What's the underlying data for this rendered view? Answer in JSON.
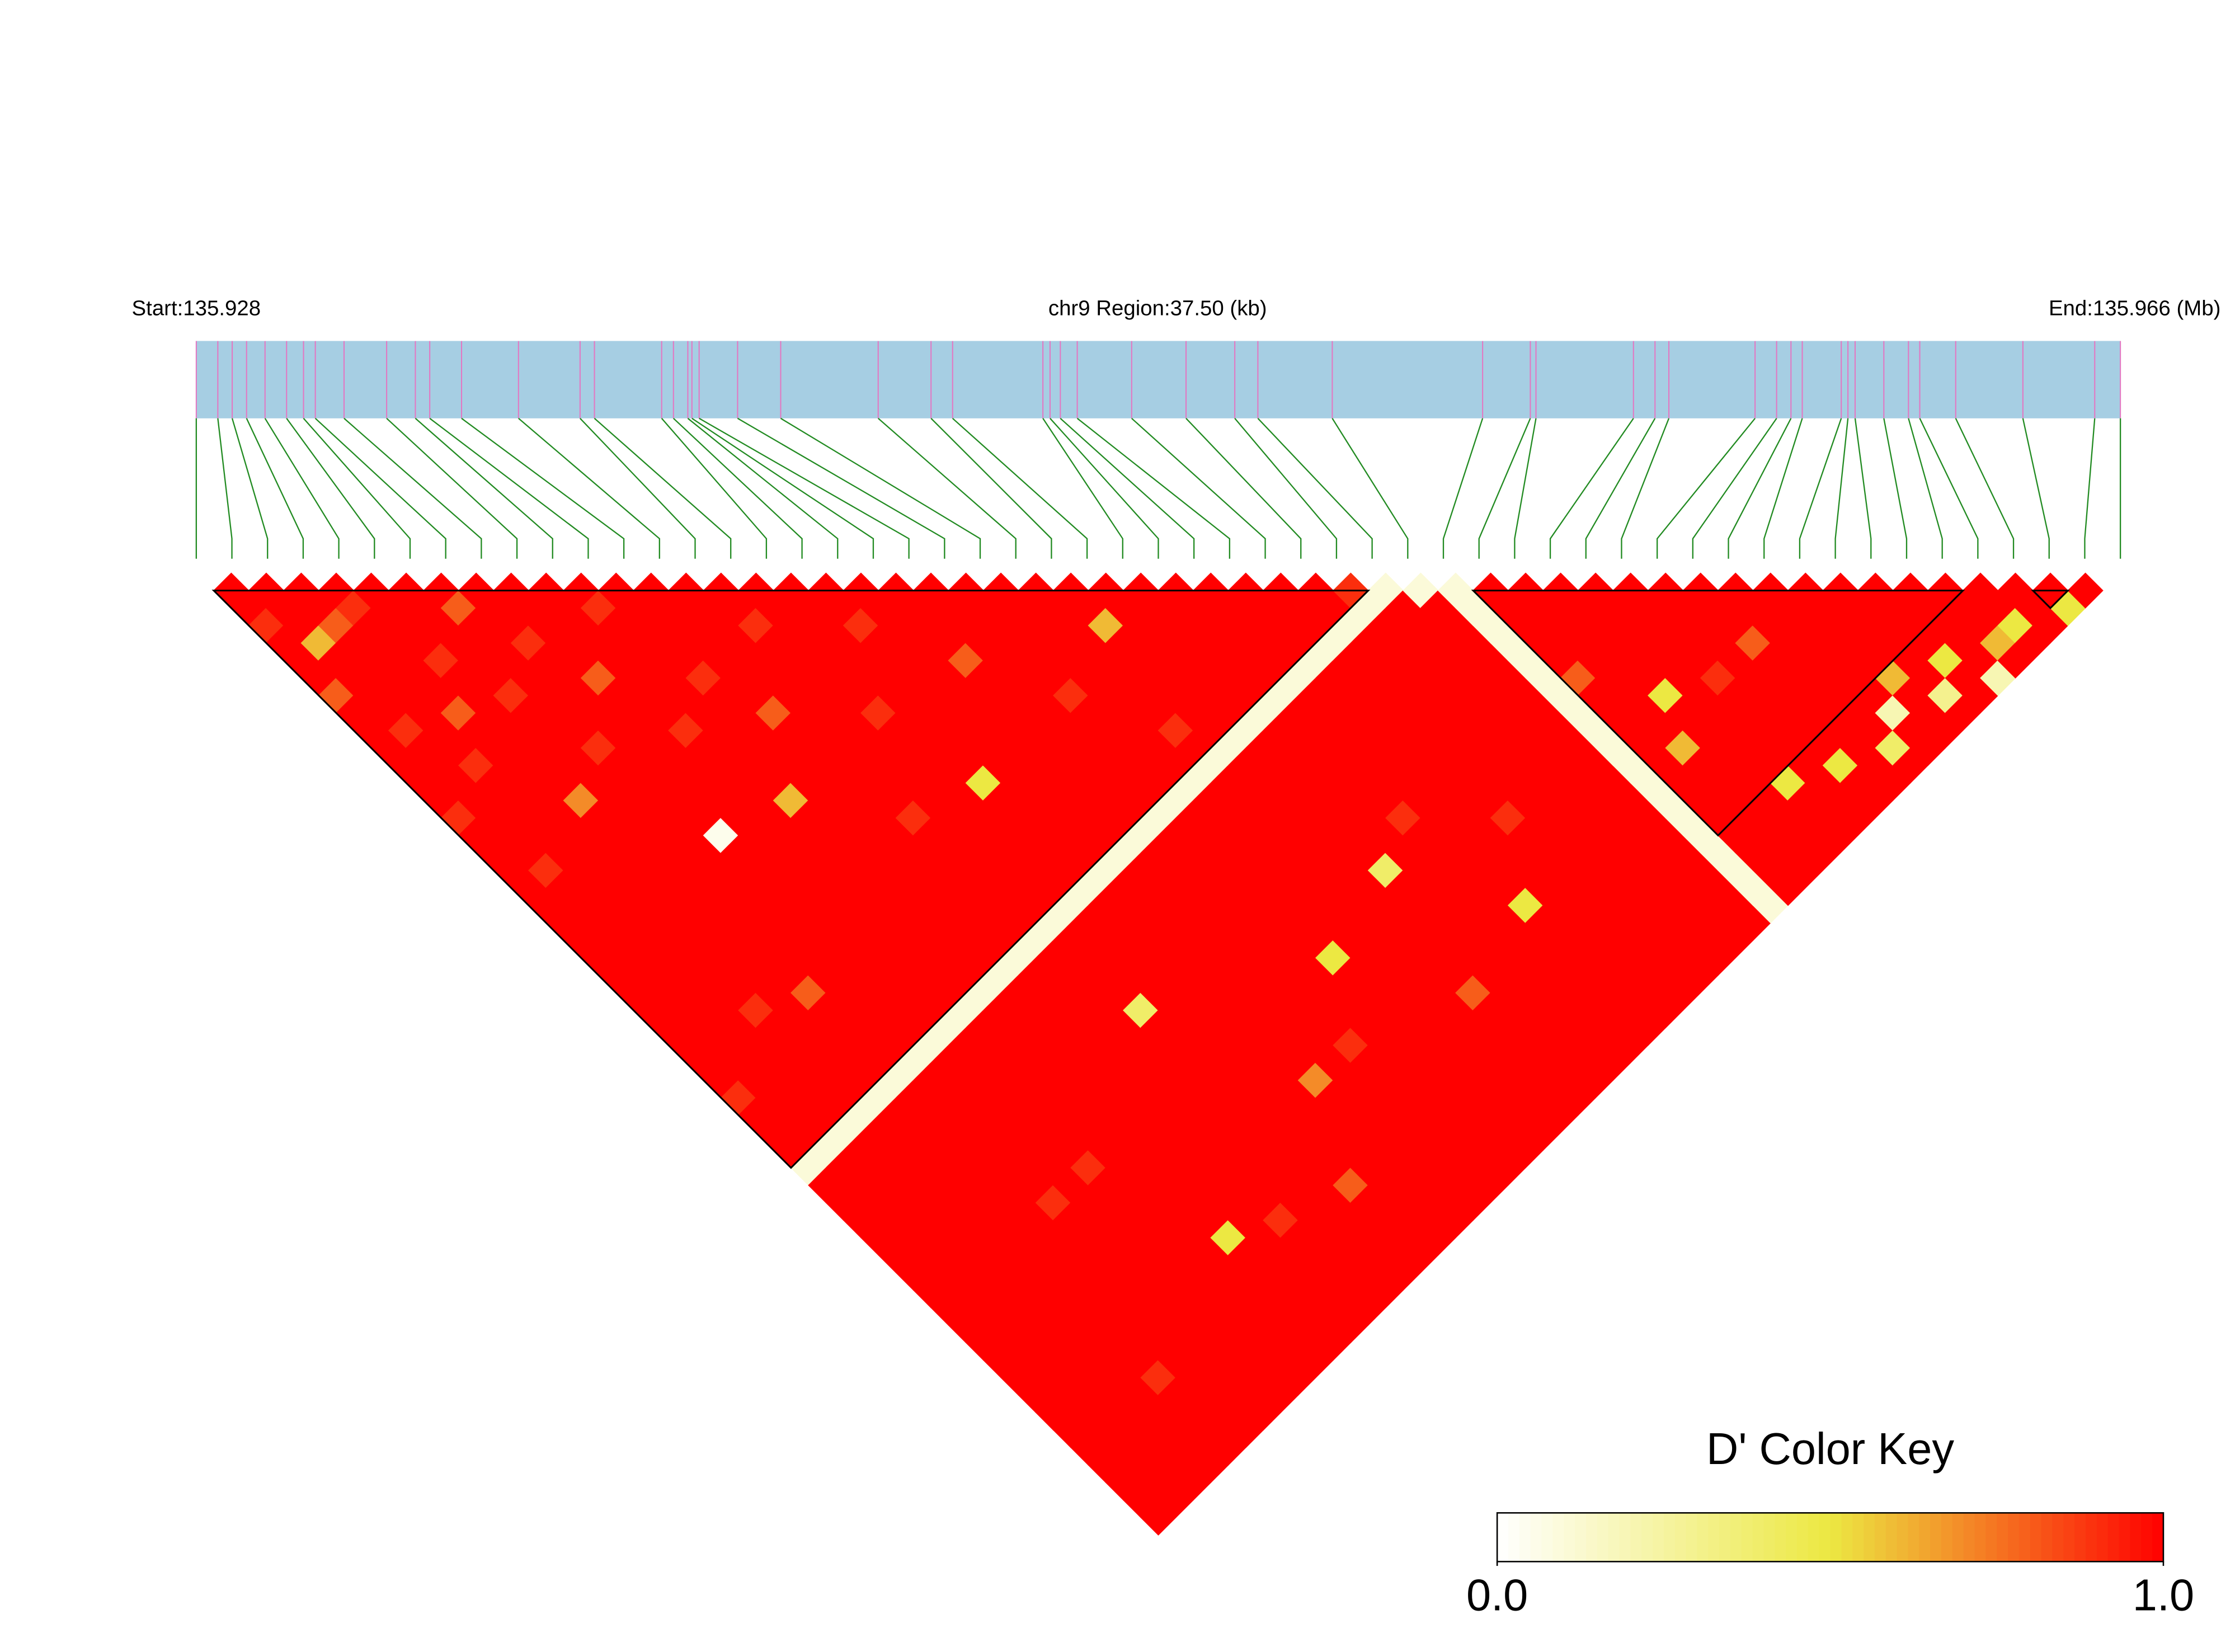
{
  "chart_data": {
    "type": "ld_heatmap",
    "start_label": "Start:135.928",
    "region_label": "chr9 Region:37.50 (kb)",
    "end_label": "End:135.966 (Mb)",
    "xlim": [
      0,
      37.5
    ],
    "snp_positions": [
      0,
      0.42,
      0.7,
      0.98,
      1.34,
      1.76,
      2.09,
      2.32,
      2.88,
      3.71,
      4.27,
      4.55,
      5.17,
      6.28,
      7.48,
      7.76,
      9.07,
      9.3,
      9.58,
      9.66,
      9.8,
      10.55,
      11.39,
      13.29,
      14.32,
      14.74,
      16.5,
      16.64,
      16.84,
      17.17,
      18.23,
      19.29,
      20.24,
      20.69,
      22.14,
      25.07,
      26.0,
      26.11,
      28.01,
      28.43,
      28.7,
      30.38,
      30.8,
      31.08,
      31.3,
      32.06,
      32.19,
      32.33,
      32.89,
      33.37,
      33.59,
      34.29,
      35.6,
      37.0,
      37.5
    ],
    "dprime": [
      [
        1,
        1,
        0.9,
        1,
        1,
        1,
        0.8,
        1,
        1,
        1,
        1,
        1,
        1,
        0.9,
        1,
        1,
        1,
        1,
        1,
        1,
        1,
        1,
        1,
        1,
        1,
        1,
        1,
        1,
        1,
        0.9,
        1,
        1,
        1,
        0.1,
        1,
        1,
        1,
        1,
        1,
        1,
        1,
        1,
        1,
        1,
        1,
        1,
        1,
        1,
        1,
        1,
        1,
        1,
        1,
        1
      ],
      [
        1,
        1,
        1,
        0.6,
        1,
        1,
        1,
        1,
        0.9,
        1,
        1,
        1,
        1,
        1,
        1,
        1,
        0.9,
        1,
        1,
        1,
        1,
        1,
        1,
        1,
        1,
        1,
        1,
        1,
        1,
        1,
        1,
        1,
        0.1,
        1,
        1,
        1,
        1,
        1,
        1,
        1,
        1,
        1,
        1,
        1,
        1,
        1,
        1,
        1,
        1,
        1,
        1,
        1,
        1
      ],
      [
        1,
        1,
        0.8,
        1,
        1,
        1,
        1,
        1,
        1,
        1,
        0.9,
        1,
        1,
        1,
        1,
        1,
        1,
        1,
        1,
        1,
        1,
        1,
        1,
        1,
        1,
        1,
        1,
        1,
        1,
        1,
        1,
        0.1,
        1,
        1,
        1,
        1,
        1,
        1,
        1,
        1,
        1,
        1,
        1,
        1,
        1,
        1,
        1,
        1,
        1,
        1,
        1,
        1
      ],
      [
        1,
        0.9,
        1,
        1,
        1,
        1,
        1,
        0.8,
        1,
        1,
        1,
        1,
        1,
        1,
        1,
        1,
        1,
        1,
        1,
        1,
        1,
        1,
        1,
        1,
        0.9,
        1,
        1,
        1,
        1,
        1,
        0.1,
        1,
        1,
        1,
        1,
        1,
        1,
        1,
        1,
        1,
        1,
        1,
        1,
        1,
        1,
        1,
        1,
        1,
        1,
        1,
        1
      ],
      [
        1,
        1,
        1,
        1,
        0.9,
        1,
        1,
        1,
        1,
        1,
        1,
        1,
        0.7,
        1,
        1,
        1,
        1,
        1,
        1,
        1,
        1,
        1,
        1,
        1,
        1,
        1,
        1,
        1,
        1,
        0.1,
        1,
        1,
        1,
        1,
        1,
        1,
        1,
        1,
        1,
        1,
        1,
        1,
        1,
        1,
        1,
        0.9,
        1,
        1,
        1,
        1
      ],
      [
        1,
        1,
        1,
        1,
        1,
        1,
        0.9,
        1,
        1,
        1,
        1,
        1,
        1,
        1,
        1,
        1,
        1,
        1,
        1,
        1,
        1,
        1,
        1,
        0.8,
        1,
        1,
        1,
        1,
        0.1,
        1,
        1,
        1,
        1,
        1,
        1,
        1,
        1,
        1,
        1,
        1,
        1,
        1,
        1,
        1,
        1,
        1,
        1,
        1,
        1
      ],
      [
        1,
        0.8,
        1,
        1,
        1,
        1,
        1,
        1,
        1,
        0.9,
        1,
        1,
        1,
        1,
        1,
        1,
        1,
        1,
        1,
        1,
        1,
        1,
        1,
        1,
        1,
        1,
        1,
        0.1,
        1,
        1,
        1,
        1,
        1,
        1,
        1,
        0.9,
        1,
        1,
        1,
        1,
        1,
        1,
        1,
        1,
        1,
        1,
        1,
        1
      ],
      [
        1,
        1,
        1,
        0.9,
        1,
        1,
        1,
        1,
        1,
        1,
        1,
        1,
        1,
        1,
        0.05,
        1,
        1,
        1,
        1,
        1,
        1,
        1,
        1,
        1,
        1,
        1,
        0.1,
        1,
        1,
        1,
        1,
        1,
        1,
        1,
        1,
        1,
        1,
        1,
        1,
        1,
        1,
        1,
        1,
        1,
        1,
        1,
        1
      ],
      [
        1,
        1,
        1,
        1,
        1,
        0.8,
        1,
        1,
        1,
        1,
        1,
        1,
        1,
        1,
        1,
        1,
        1,
        1,
        1,
        1,
        1,
        1,
        1,
        1,
        1,
        0.1,
        1,
        1,
        1,
        1,
        1,
        1,
        1,
        0.9,
        1,
        1,
        1,
        1,
        1,
        1,
        1,
        1,
        1,
        1,
        1,
        1
      ],
      [
        1,
        1,
        1,
        1,
        1,
        1,
        1,
        1,
        0.9,
        1,
        1,
        1,
        1,
        1,
        1,
        1,
        1,
        1,
        1,
        1,
        1,
        1,
        1,
        1,
        0.1,
        1,
        1,
        1,
        1,
        1,
        1,
        1,
        1,
        1,
        1,
        1,
        1,
        1,
        1,
        1,
        1,
        1,
        1,
        1,
        1
      ],
      [
        1,
        0.9,
        1,
        1,
        1,
        1,
        1,
        1,
        1,
        1,
        1,
        1,
        0.6,
        1,
        1,
        1,
        1,
        1,
        1,
        1,
        1,
        1,
        1,
        0.1,
        1,
        1,
        1,
        1,
        1,
        1,
        1,
        1,
        1,
        1,
        1,
        1,
        1,
        0.5,
        1,
        1,
        1,
        1,
        1,
        1
      ],
      [
        1,
        1,
        1,
        1,
        1,
        0.9,
        1,
        1,
        1,
        1,
        1,
        1,
        1,
        1,
        1,
        1,
        1,
        1,
        1,
        1,
        1,
        1,
        0.1,
        1,
        1,
        1,
        1,
        1,
        1,
        1,
        1,
        1,
        1,
        1,
        1,
        1,
        1,
        1,
        1,
        1,
        1,
        1,
        1
      ],
      [
        1,
        1,
        1,
        1,
        1,
        1,
        1,
        0.8,
        1,
        1,
        1,
        1,
        1,
        1,
        1,
        1,
        1,
        1,
        1,
        1,
        1,
        0.1,
        1,
        1,
        1,
        1,
        1,
        1,
        1,
        1,
        1,
        1,
        1,
        1,
        1,
        1,
        0.9,
        1,
        1,
        1,
        1,
        1
      ],
      [
        1,
        1,
        1,
        1,
        1,
        1,
        1,
        1,
        1,
        1,
        1,
        1,
        1,
        0.9,
        1,
        1,
        1,
        1,
        1,
        1,
        0.1,
        1,
        1,
        1,
        1,
        1,
        1,
        1,
        1,
        1,
        1,
        1,
        1,
        1,
        1,
        1,
        1,
        1,
        1,
        1,
        1
      ],
      [
        1,
        1,
        0.9,
        1,
        1,
        1,
        1,
        1,
        1,
        1,
        1,
        1,
        1,
        1,
        1,
        1,
        1,
        1,
        1,
        0.1,
        1,
        1,
        1,
        1,
        0.4,
        1,
        1,
        1,
        1,
        1,
        1,
        1,
        1,
        1,
        1,
        1,
        1,
        1,
        1,
        1
      ],
      [
        1,
        1,
        1,
        1,
        1,
        1,
        1,
        0.9,
        1,
        1,
        1,
        1,
        1,
        1,
        1,
        1,
        1,
        1,
        0.1,
        1,
        1,
        1,
        1,
        1,
        1,
        1,
        1,
        1,
        1,
        1,
        1,
        1,
        1,
        1,
        0.8,
        1,
        1,
        1,
        1
      ],
      [
        1,
        1,
        1,
        1,
        1,
        1,
        1,
        1,
        1,
        1,
        1,
        0.5,
        1,
        1,
        1,
        1,
        1,
        0.1,
        1,
        1,
        1,
        1,
        1,
        1,
        1,
        1,
        1,
        1,
        1,
        1,
        1,
        1,
        1,
        1,
        1,
        1,
        1,
        1
      ],
      [
        1,
        1,
        0.9,
        1,
        1,
        1,
        1,
        1,
        1,
        1,
        1,
        1,
        1,
        1,
        1,
        1,
        0.1,
        1,
        1,
        1,
        1,
        1,
        1,
        1,
        1,
        1,
        1,
        1,
        0.7,
        1,
        1,
        1,
        1,
        1,
        1,
        1,
        1
      ],
      [
        1,
        1,
        1,
        1,
        1,
        1,
        1,
        1,
        1,
        1,
        1,
        1,
        1,
        1,
        1,
        0.1,
        1,
        1,
        1,
        1,
        1,
        1,
        1,
        1,
        1,
        1,
        1,
        1,
        1,
        1,
        1,
        1,
        1,
        1,
        1,
        1
      ],
      [
        1,
        1,
        1,
        1,
        0.8,
        1,
        1,
        1,
        1,
        1,
        1,
        1,
        1,
        1,
        0.1,
        1,
        1,
        1,
        1,
        1,
        1,
        1,
        1,
        1,
        1,
        1,
        0.9,
        1,
        1,
        1,
        1,
        1,
        1,
        1,
        1
      ],
      [
        1,
        1,
        1,
        1,
        1,
        1,
        1,
        1,
        1,
        1,
        1,
        1,
        1,
        0.1,
        1,
        1,
        1,
        1,
        1,
        1,
        1,
        1,
        1,
        1,
        1,
        1,
        1,
        1,
        1,
        1,
        1,
        1,
        1,
        1
      ],
      [
        1,
        1,
        1,
        1,
        1,
        1,
        0.9,
        1,
        1,
        1,
        1,
        1,
        0.1,
        1,
        1,
        1,
        1,
        1,
        1,
        1,
        1,
        0.5,
        1,
        1,
        1,
        1,
        1,
        1,
        1,
        1,
        1,
        1,
        1
      ],
      [
        1,
        1,
        1,
        1,
        1,
        1,
        1,
        1,
        1,
        1,
        1,
        0.1,
        1,
        1,
        1,
        1,
        1,
        1,
        1,
        1,
        1,
        1,
        1,
        1,
        1,
        1,
        1,
        1,
        1,
        1,
        1,
        1
      ],
      [
        1,
        1,
        1,
        1,
        1,
        1,
        1,
        1,
        0.9,
        1,
        0.1,
        1,
        1,
        1,
        1,
        1,
        1,
        1,
        1,
        1,
        1,
        1,
        1,
        1,
        1,
        1,
        1,
        1,
        1,
        1,
        1
      ],
      [
        1,
        1,
        0.6,
        1,
        1,
        1,
        1,
        1,
        1,
        0.1,
        1,
        1,
        1,
        1,
        1,
        1,
        1,
        1,
        1,
        1,
        1,
        1,
        1,
        0.8,
        1,
        1,
        1,
        1,
        1,
        1
      ],
      [
        1,
        1,
        1,
        1,
        1,
        1,
        1,
        1,
        0.1,
        1,
        1,
        1,
        1,
        1,
        1,
        1,
        0.4,
        1,
        1,
        1,
        1,
        1,
        1,
        1,
        1,
        1,
        1,
        1,
        1
      ],
      [
        1,
        1,
        1,
        1,
        1,
        1,
        1,
        0.1,
        1,
        1,
        1,
        1,
        1,
        1,
        1,
        1,
        1,
        1,
        1,
        1,
        1,
        1,
        1,
        1,
        1,
        1,
        1,
        1
      ],
      [
        1,
        1,
        1,
        1,
        1,
        1,
        0.1,
        1,
        1,
        1,
        1,
        1,
        1,
        0.9,
        1,
        1,
        1,
        1,
        1,
        1,
        1,
        1,
        1,
        1,
        1,
        1,
        1
      ],
      [
        1,
        1,
        1,
        1,
        1,
        0.1,
        1,
        1,
        1,
        1,
        1,
        1,
        1,
        1,
        1,
        1,
        1,
        1,
        0.5,
        1,
        1,
        1,
        1,
        1,
        1,
        1
      ],
      [
        1,
        1,
        1,
        1,
        0.1,
        1,
        1,
        1,
        1,
        1,
        1,
        1,
        1,
        1,
        1,
        1,
        1,
        1,
        1,
        1,
        1,
        1,
        1,
        1,
        1
      ],
      [
        1,
        1,
        1,
        0.1,
        1,
        1,
        1,
        1,
        1,
        1,
        1,
        1,
        1,
        0.9,
        1,
        1,
        1,
        1,
        1,
        1,
        1,
        1,
        1,
        1
      ],
      [
        1,
        1,
        0.1,
        1,
        1,
        1,
        1,
        1,
        1,
        1,
        1,
        1,
        1,
        1,
        1,
        1,
        1,
        1,
        1,
        1,
        1,
        1,
        1
      ],
      [
        0.9,
        0.1,
        1,
        1,
        1,
        1,
        1,
        1,
        1,
        1,
        1,
        1,
        1,
        1,
        1,
        1,
        1,
        1,
        1,
        1,
        1,
        1
      ],
      [
        0.1,
        1,
        1,
        1,
        1,
        1,
        1,
        1,
        1,
        1,
        1,
        1,
        1,
        1,
        1,
        1,
        1,
        1,
        1,
        1,
        1
      ],
      [
        0.1,
        1,
        1,
        1,
        1,
        1,
        1,
        1,
        1,
        1,
        1,
        1,
        1,
        1,
        1,
        1,
        1,
        1,
        1,
        1
      ],
      [
        0.1,
        0.1,
        0.1,
        0.1,
        0.1,
        0.1,
        0.1,
        0.1,
        0.1,
        0.1,
        0.1,
        0.1,
        0.1,
        0.1,
        0.1,
        0.1,
        0.1,
        0.1,
        0.1
      ],
      [
        1,
        1,
        1,
        1,
        1,
        0.8,
        1,
        1,
        1,
        1,
        1,
        1,
        1,
        1,
        1,
        1,
        1,
        1
      ],
      [
        1,
        1,
        1,
        1,
        1,
        1,
        1,
        1,
        1,
        0.6,
        1,
        1,
        1,
        1,
        1,
        1,
        1
      ],
      [
        1,
        1,
        1,
        1,
        1,
        1,
        0.5,
        1,
        1,
        1,
        1,
        1,
        1,
        1,
        1,
        1
      ],
      [
        1,
        1,
        1,
        1,
        1,
        1,
        1,
        1,
        1,
        1,
        1,
        0.5,
        1,
        1,
        1
      ],
      [
        1,
        1,
        1,
        1,
        1,
        0.9,
        1,
        1,
        1,
        1,
        1,
        1,
        1,
        1
      ],
      [
        1,
        1,
        1,
        1,
        1,
        1,
        1,
        1,
        1,
        1,
        0.5,
        1,
        1
      ],
      [
        1,
        1,
        1,
        0.8,
        1,
        1,
        1,
        1,
        1,
        1,
        1,
        1
      ],
      [
        1,
        1,
        1,
        1,
        1,
        1,
        1,
        1,
        1,
        0.4,
        1
      ],
      [
        1,
        1,
        1,
        1,
        1,
        1,
        1,
        0.2,
        1,
        1
      ],
      [
        1,
        1,
        1,
        1,
        1,
        0.6,
        1,
        1,
        1
      ],
      [
        1,
        1,
        1,
        1,
        1,
        1,
        0.3,
        1
      ],
      [
        1,
        1,
        1,
        1,
        0.5,
        1,
        1
      ],
      [
        1,
        1,
        1,
        1,
        1,
        0.2
      ],
      [
        1,
        1,
        1,
        0.6,
        1
      ],
      [
        1,
        1,
        0.5,
        1
      ],
      [
        1,
        1,
        1
      ],
      [
        1,
        0.5
      ],
      [
        1
      ]
    ],
    "blocks": [
      [
        0,
        33
      ],
      [
        36,
        50
      ],
      [
        52,
        53
      ]
    ],
    "bar_color": "#a6cee3",
    "snp_line_color": "#e377c2",
    "link_color": "#228b22",
    "block_color": "#000000",
    "color_scale": [
      "#ffffff",
      "#ece842",
      "#ff0000"
    ],
    "colorbar": {
      "title": "D' Color Key",
      "lim": [
        0,
        1
      ],
      "ticks": [
        {
          "value": 0,
          "label": "0.0"
        },
        {
          "value": 1,
          "label": "1.0"
        }
      ]
    }
  }
}
